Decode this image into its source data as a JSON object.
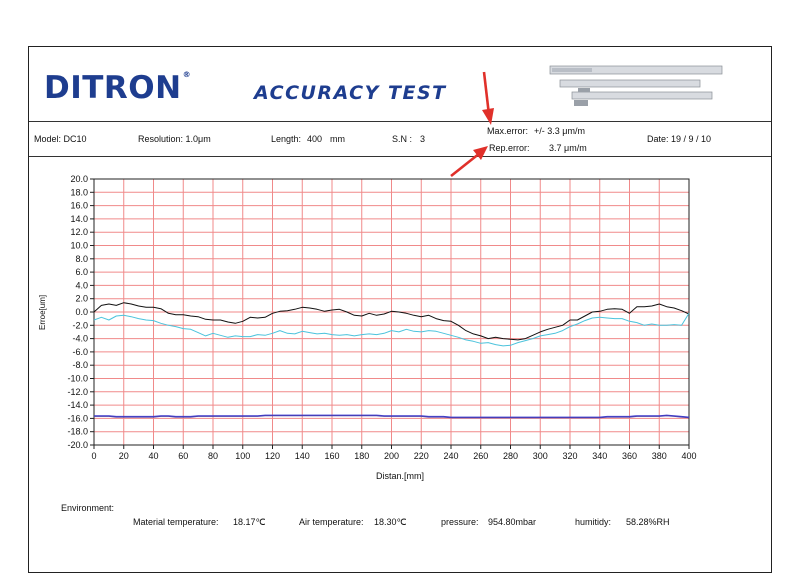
{
  "header": {
    "brand": "DITRON",
    "brand_mark": "®",
    "title": "ACCURACY TEST"
  },
  "info": {
    "model": "Model: DC10",
    "resolution": "Resolution: 1.0μm",
    "length_label": "Length:",
    "length_value": "400",
    "length_unit": "mm",
    "sn_label": "S.N :",
    "sn_value": "3",
    "max_error_label": "Max.error:",
    "max_error_value": "+/- 3.3 μm/m",
    "rep_error_label": "Rep.error:",
    "rep_error_value": "3.7 μm/m",
    "date": "Date: 19 / 9   / 10"
  },
  "environment": {
    "heading": "Environment:",
    "material_label": "Material temperature:",
    "material_value": "18.17℃",
    "air_label": "Air temperature:",
    "air_value": "18.30℃",
    "pressure_label": "pressure:",
    "pressure_value": "954.80mbar",
    "humidity_label": "humitidy:",
    "humidity_value": "58.28%RH"
  },
  "colors": {
    "brand": "#1e3d8f",
    "grid": "#f08a8a",
    "arrow": "#e0302a",
    "series_black": "#111111",
    "series_cyan": "#4cc3dc",
    "series_blue": "#3a3ad0"
  },
  "chart_data": {
    "type": "line",
    "title": "",
    "xlabel": "Distan.[mm]",
    "ylabel": "Erroe[um]",
    "xlim": [
      0,
      400
    ],
    "ylim": [
      -20,
      20
    ],
    "x_ticks": [
      "0",
      "20",
      "40",
      "60",
      "80",
      "100",
      "120",
      "140",
      "160",
      "180",
      "200",
      "220",
      "240",
      "260",
      "280",
      "300",
      "320",
      "340",
      "360",
      "380",
      "400"
    ],
    "y_ticks": [
      "20.0",
      "18.0",
      "16.0",
      "14.0",
      "12.0",
      "10.0",
      "8.0",
      "6.0",
      "4.0",
      "2.0",
      "0.0",
      "-2.0",
      "-4.0",
      "-6.0",
      "-8.0",
      "-10.0",
      "-12.0",
      "-14.0",
      "-16.0",
      "-18.0",
      "-20.0"
    ],
    "grid": true,
    "legend": "none",
    "x": [
      0,
      5,
      10,
      15,
      20,
      25,
      30,
      35,
      40,
      45,
      50,
      55,
      60,
      65,
      70,
      75,
      80,
      85,
      90,
      95,
      100,
      105,
      110,
      115,
      120,
      125,
      130,
      135,
      140,
      145,
      150,
      155,
      160,
      165,
      170,
      175,
      180,
      185,
      190,
      195,
      200,
      205,
      210,
      215,
      220,
      225,
      230,
      235,
      240,
      245,
      250,
      255,
      260,
      265,
      270,
      275,
      280,
      285,
      290,
      295,
      300,
      305,
      310,
      315,
      320,
      325,
      330,
      335,
      340,
      345,
      350,
      355,
      360,
      365,
      370,
      375,
      380,
      385,
      390,
      395,
      400
    ],
    "series": [
      {
        "color": "#111111",
        "values": [
          0.0,
          1.0,
          1.2,
          1.0,
          1.4,
          1.2,
          0.9,
          0.7,
          0.7,
          0.5,
          -0.2,
          -0.4,
          -0.4,
          -0.6,
          -0.7,
          -1.1,
          -1.2,
          -1.2,
          -1.5,
          -1.7,
          -1.4,
          -0.8,
          -0.9,
          -0.8,
          -0.2,
          0.1,
          0.2,
          0.4,
          0.7,
          0.6,
          0.4,
          0.1,
          0.3,
          0.4,
          0.0,
          -0.5,
          -0.6,
          -0.2,
          -0.5,
          -0.3,
          0.1,
          0.0,
          -0.2,
          -0.5,
          -0.7,
          -0.5,
          -1.0,
          -1.3,
          -1.4,
          -2.0,
          -2.8,
          -3.3,
          -3.6,
          -4.0,
          -3.8,
          -4.0,
          -4.1,
          -4.2,
          -4.0,
          -3.5,
          -3.0,
          -2.6,
          -2.3,
          -2.0,
          -1.2,
          -1.2,
          -0.6,
          0.0,
          0.1,
          0.4,
          0.5,
          0.4,
          -0.2,
          0.8,
          0.8,
          0.9,
          1.2,
          0.8,
          0.6,
          0.2,
          -0.3
        ]
      },
      {
        "color": "#4cc3dc",
        "values": [
          -1.2,
          -0.8,
          -1.2,
          -0.6,
          -0.5,
          -0.7,
          -1.0,
          -1.2,
          -1.3,
          -1.7,
          -2.0,
          -2.2,
          -2.5,
          -2.6,
          -3.1,
          -3.6,
          -3.2,
          -3.5,
          -3.8,
          -3.6,
          -3.7,
          -3.7,
          -3.4,
          -3.5,
          -3.2,
          -2.8,
          -3.2,
          -3.3,
          -2.9,
          -3.1,
          -3.3,
          -3.2,
          -3.4,
          -3.5,
          -3.4,
          -3.6,
          -3.4,
          -3.3,
          -3.4,
          -3.2,
          -2.8,
          -3.0,
          -2.6,
          -2.9,
          -3.0,
          -2.8,
          -2.9,
          -3.2,
          -3.5,
          -3.8,
          -4.2,
          -4.4,
          -4.7,
          -4.6,
          -4.9,
          -5.1,
          -5.0,
          -4.6,
          -4.3,
          -4.0,
          -3.6,
          -3.4,
          -3.2,
          -2.8,
          -2.2,
          -1.8,
          -1.3,
          -0.9,
          -0.8,
          -0.9,
          -1.0,
          -1.0,
          -1.4,
          -1.6,
          -2.0,
          -1.8,
          -2.0,
          -2.0,
          -1.9,
          -2.0,
          -0.2
        ]
      },
      {
        "color": "#3a3ad0",
        "values": [
          -15.6,
          -15.6,
          -15.6,
          -15.7,
          -15.7,
          -15.7,
          -15.7,
          -15.7,
          -15.7,
          -15.6,
          -15.6,
          -15.7,
          -15.7,
          -15.7,
          -15.6,
          -15.6,
          -15.6,
          -15.6,
          -15.6,
          -15.6,
          -15.6,
          -15.6,
          -15.6,
          -15.5,
          -15.5,
          -15.5,
          -15.5,
          -15.5,
          -15.5,
          -15.5,
          -15.5,
          -15.5,
          -15.5,
          -15.5,
          -15.5,
          -15.5,
          -15.5,
          -15.5,
          -15.5,
          -15.6,
          -15.6,
          -15.6,
          -15.6,
          -15.6,
          -15.6,
          -15.7,
          -15.7,
          -15.7,
          -15.8,
          -15.8,
          -15.8,
          -15.8,
          -15.8,
          -15.8,
          -15.8,
          -15.8,
          -15.8,
          -15.8,
          -15.8,
          -15.8,
          -15.8,
          -15.8,
          -15.8,
          -15.8,
          -15.8,
          -15.8,
          -15.8,
          -15.8,
          -15.8,
          -15.7,
          -15.7,
          -15.7,
          -15.7,
          -15.6,
          -15.6,
          -15.6,
          -15.6,
          -15.5,
          -15.6,
          -15.7,
          -15.8
        ]
      },
      {
        "color": "#4a3fb0",
        "values": [
          -15.7,
          -15.7,
          -15.7,
          -15.8,
          -15.8,
          -15.8,
          -15.8,
          -15.8,
          -15.8,
          -15.7,
          -15.7,
          -15.8,
          -15.8,
          -15.8,
          -15.7,
          -15.7,
          -15.7,
          -15.7,
          -15.7,
          -15.7,
          -15.7,
          -15.7,
          -15.7,
          -15.6,
          -15.6,
          -15.6,
          -15.6,
          -15.6,
          -15.6,
          -15.6,
          -15.6,
          -15.6,
          -15.6,
          -15.6,
          -15.6,
          -15.6,
          -15.6,
          -15.6,
          -15.6,
          -15.7,
          -15.7,
          -15.7,
          -15.7,
          -15.7,
          -15.7,
          -15.8,
          -15.8,
          -15.8,
          -15.9,
          -15.9,
          -15.9,
          -15.9,
          -15.9,
          -15.9,
          -15.9,
          -15.9,
          -15.9,
          -15.9,
          -15.9,
          -15.9,
          -15.9,
          -15.9,
          -15.9,
          -15.9,
          -15.9,
          -15.9,
          -15.9,
          -15.9,
          -15.9,
          -15.8,
          -15.8,
          -15.8,
          -15.8,
          -15.7,
          -15.7,
          -15.7,
          -15.7,
          -15.6,
          -15.7,
          -15.8,
          -15.9
        ]
      }
    ]
  }
}
